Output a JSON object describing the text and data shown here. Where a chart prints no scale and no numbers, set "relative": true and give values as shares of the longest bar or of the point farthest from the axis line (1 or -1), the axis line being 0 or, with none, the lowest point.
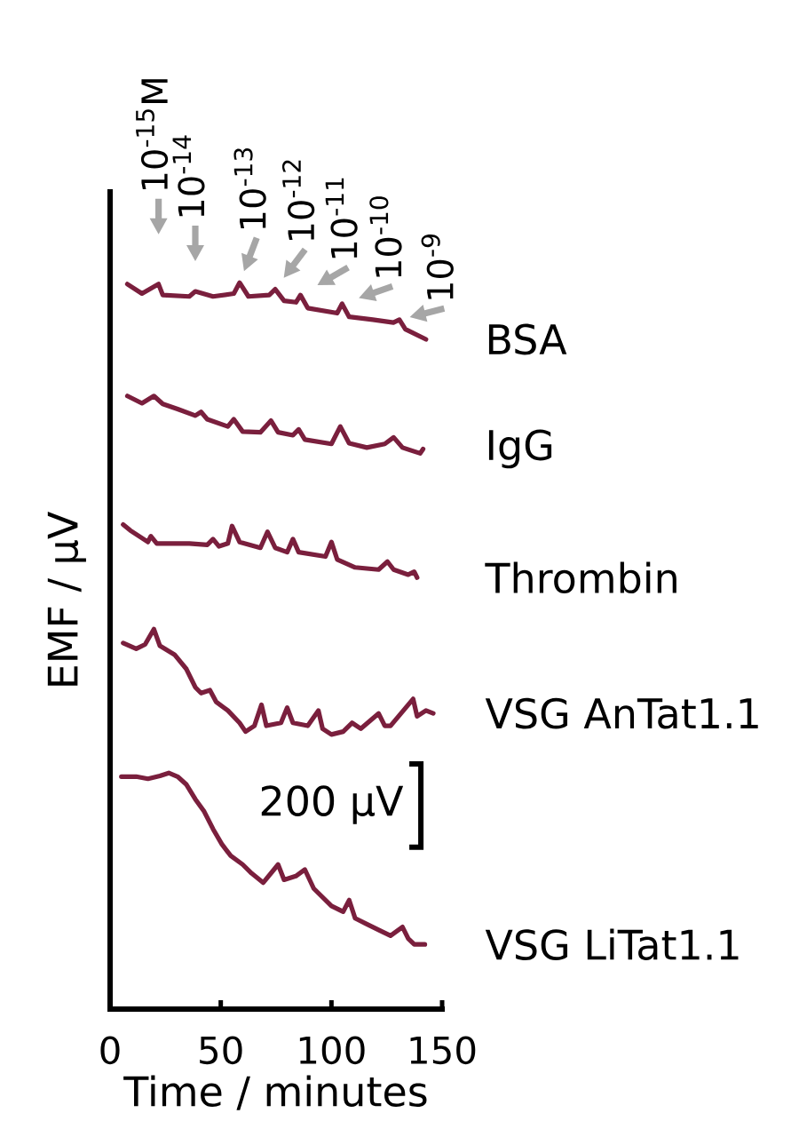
{
  "chart_data": {
    "type": "line",
    "relative": true,
    "xlabel": "Time / minutes",
    "ylabel": "EMF / μV",
    "xlim": [
      0,
      150
    ],
    "xticks": [
      0,
      50,
      100,
      150
    ],
    "series": [
      {
        "name": "BSA",
        "color": "#7a1f3d",
        "x": [
          7.8,
          14.4,
          21.9,
          23.8,
          35.8,
          38.5,
          46.5,
          55.9,
          58.5,
          62.5,
          71.9,
          74.6,
          78.6,
          84,
          86,
          89.3,
          102.6,
          104.8,
          108,
          118.7,
          128,
          130.7,
          133.4,
          142.7
        ],
        "values": [
          0.998,
          0.985,
          0.998,
          0.983,
          0.981,
          0.988,
          0.981,
          0.985,
          1.0,
          0.981,
          0.983,
          0.991,
          0.975,
          0.973,
          0.983,
          0.965,
          0.958,
          0.971,
          0.953,
          0.949,
          0.945,
          0.949,
          0.936,
          0.922
        ]
      },
      {
        "name": "IgG",
        "color": "#7a1f3d",
        "x": [
          7.8,
          14.4,
          19.8,
          23.8,
          30.5,
          38.5,
          41.1,
          43.9,
          53.2,
          55.9,
          59.9,
          67.9,
          72.7,
          75.9,
          82.6,
          85.2,
          88,
          100,
          104,
          108,
          116,
          124.1,
          128.1,
          132.1,
          140.1,
          141.4
        ],
        "values": [
          0.844,
          0.834,
          0.844,
          0.833,
          0.826,
          0.817,
          0.822,
          0.812,
          0.802,
          0.812,
          0.795,
          0.794,
          0.81,
          0.794,
          0.79,
          0.798,
          0.784,
          0.778,
          0.802,
          0.779,
          0.773,
          0.778,
          0.787,
          0.773,
          0.765,
          0.771
        ]
      },
      {
        "name": "Thrombin",
        "color": "#7a1f3d",
        "x": [
          5.9,
          9.1,
          17.1,
          18.4,
          21.1,
          35.8,
          43.9,
          46.5,
          49.2,
          53.2,
          55.1,
          58.5,
          67.9,
          71.1,
          74.6,
          80,
          82.6,
          85.2,
          97.3,
          100,
          102.6,
          110.7,
          121.3,
          125.3,
          128.1,
          134.7,
          137.4,
          138.7
        ],
        "values": [
          0.667,
          0.659,
          0.643,
          0.651,
          0.641,
          0.641,
          0.639,
          0.647,
          0.637,
          0.641,
          0.665,
          0.643,
          0.635,
          0.657,
          0.635,
          0.629,
          0.647,
          0.629,
          0.623,
          0.643,
          0.619,
          0.608,
          0.605,
          0.616,
          0.605,
          0.598,
          0.602,
          0.594
        ]
      },
      {
        "name": "VSG AnTat1.1",
        "color": "#7a1f3d",
        "x": [
          5.9,
          11.8,
          15.8,
          19.8,
          22.5,
          29.1,
          34.5,
          38.5,
          41.1,
          45.1,
          47.9,
          53.2,
          58.5,
          61.2,
          65.2,
          68.4,
          70.6,
          77.2,
          80,
          82.6,
          89.3,
          94.1,
          96,
          100,
          105.3,
          109.3,
          113.3,
          121.3,
          124.1,
          126.7,
          136.9,
          138.7,
          142.7,
          146
        ],
        "values": [
          0.504,
          0.496,
          0.502,
          0.523,
          0.5,
          0.488,
          0.468,
          0.443,
          0.435,
          0.439,
          0.423,
          0.411,
          0.394,
          0.382,
          0.39,
          0.419,
          0.39,
          0.394,
          0.415,
          0.394,
          0.39,
          0.411,
          0.386,
          0.378,
          0.382,
          0.394,
          0.386,
          0.407,
          0.39,
          0.39,
          0.427,
          0.403,
          0.411,
          0.407
        ]
      },
      {
        "name": "VSG LiTat1.1",
        "color": "#7a1f3d",
        "x": [
          5.1,
          11.8,
          17.1,
          22.5,
          26.5,
          30.5,
          34.5,
          38.5,
          42.5,
          46.5,
          50.5,
          54.5,
          59.9,
          63.9,
          69.2,
          75.9,
          78.6,
          83.9,
          88,
          92,
          100,
          105.3,
          108,
          110.7,
          116,
          121.3,
          126.7,
          132.1,
          134.7,
          137.4,
          142.2
        ],
        "values": [
          0.32,
          0.32,
          0.317,
          0.321,
          0.325,
          0.32,
          0.309,
          0.289,
          0.272,
          0.248,
          0.227,
          0.211,
          0.199,
          0.187,
          0.174,
          0.199,
          0.178,
          0.183,
          0.192,
          0.166,
          0.142,
          0.134,
          0.15,
          0.125,
          0.117,
          0.109,
          0.101,
          0.113,
          0.097,
          0.089,
          0.089
        ]
      }
    ],
    "annotations": [
      {
        "text": "10$^{-15}$M",
        "x": 21.9,
        "y": 0.998
      },
      {
        "text": "10$^{-14}$",
        "x": 38.5,
        "y": 0.988
      },
      {
        "text": "10$^{-13}$",
        "x": 58.5,
        "y": 1.0
      },
      {
        "text": "10$^{-12}$",
        "x": 74.6,
        "y": 0.991
      },
      {
        "text": "10$^{-11}$",
        "x": 86,
        "y": 0.983
      },
      {
        "text": "10$^{-10}$",
        "x": 104.8,
        "y": 0.971
      },
      {
        "text": "10$^{-9}$",
        "x": 130.7,
        "y": 0.949
      },
      "200 μV"
    ]
  }
}
